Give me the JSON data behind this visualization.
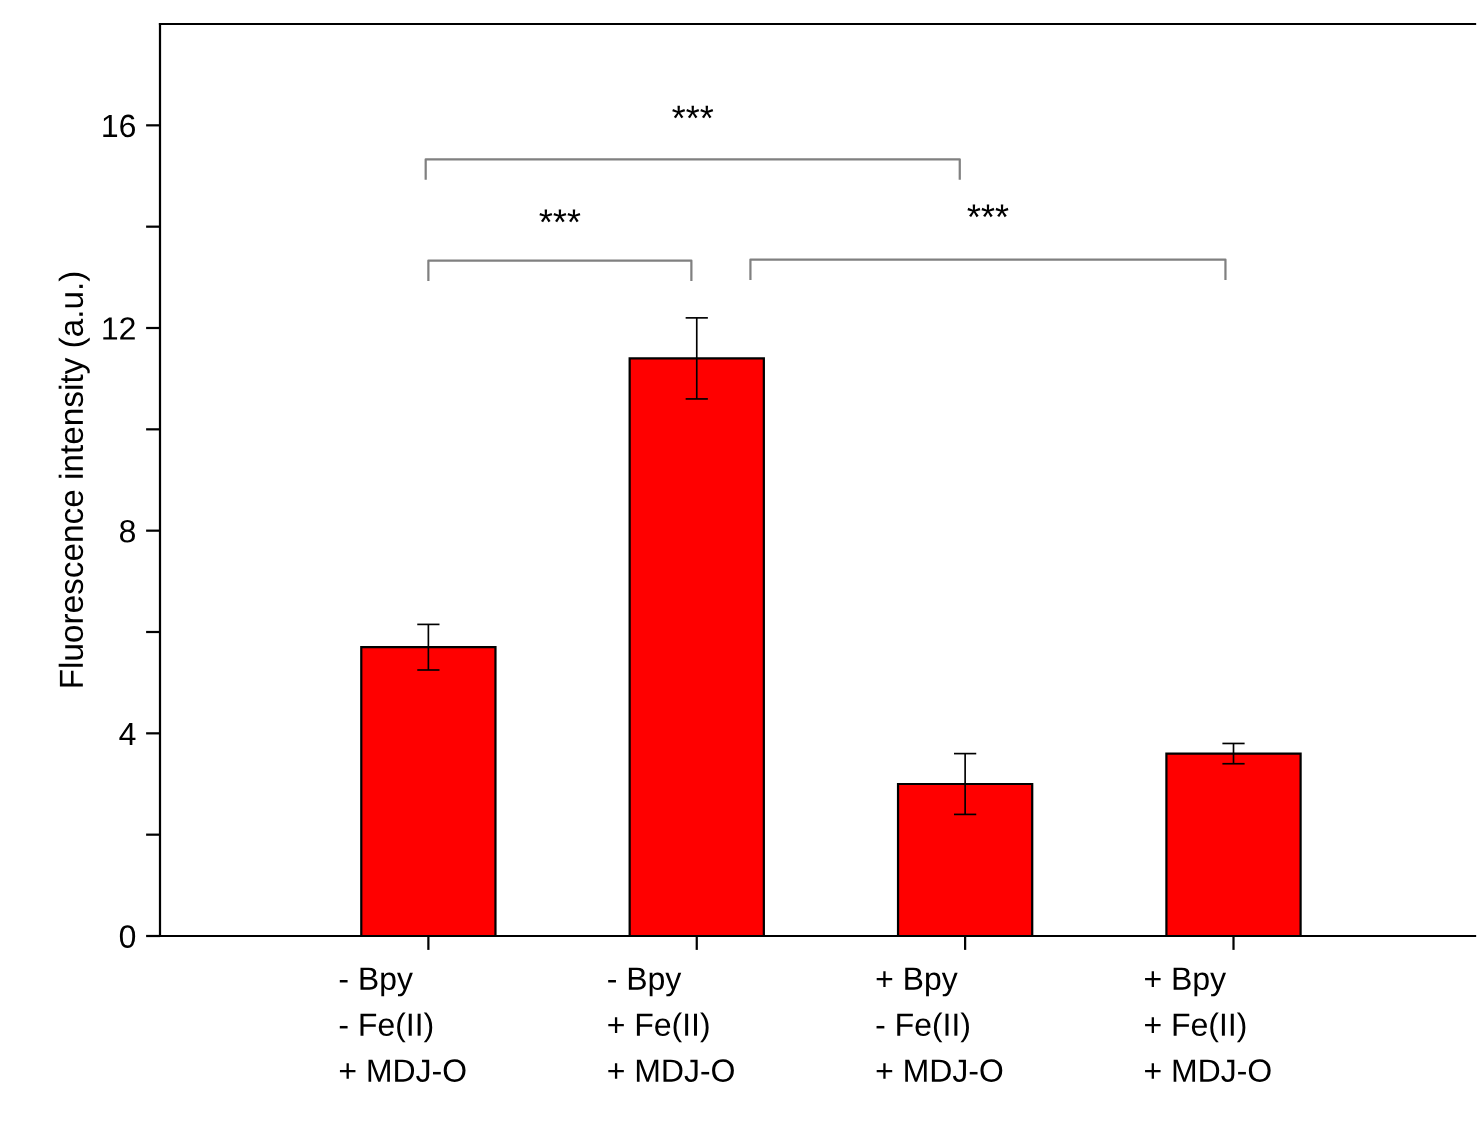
{
  "chart_data": {
    "type": "bar",
    "ylabel": "Fluorescence intensity (a.u.)",
    "categories": [
      "- Bpy\n- Fe(II)\n+ MDJ-O",
      "- Bpy\n+ Fe(II)\n+ MDJ-O",
      "+ Bpy\n- Fe(II)\n+ MDJ-O",
      "+ Bpy\n+ Fe(II)\n+ MDJ-O"
    ],
    "values": [
      5.7,
      11.4,
      3.0,
      3.6
    ],
    "errors": [
      0.45,
      0.8,
      0.6,
      0.2
    ],
    "color": "#ff0000",
    "ylim": [
      0,
      18
    ],
    "yticks": [
      0,
      {
        "value": 2,
        "label": null
      },
      4,
      {
        "value": 6,
        "label": null
      },
      8,
      {
        "value": 10,
        "label": null
      },
      12,
      {
        "value": 14,
        "label": null
      },
      16
    ],
    "grid": false,
    "annotations": [
      "***",
      "***",
      "***"
    ]
  }
}
